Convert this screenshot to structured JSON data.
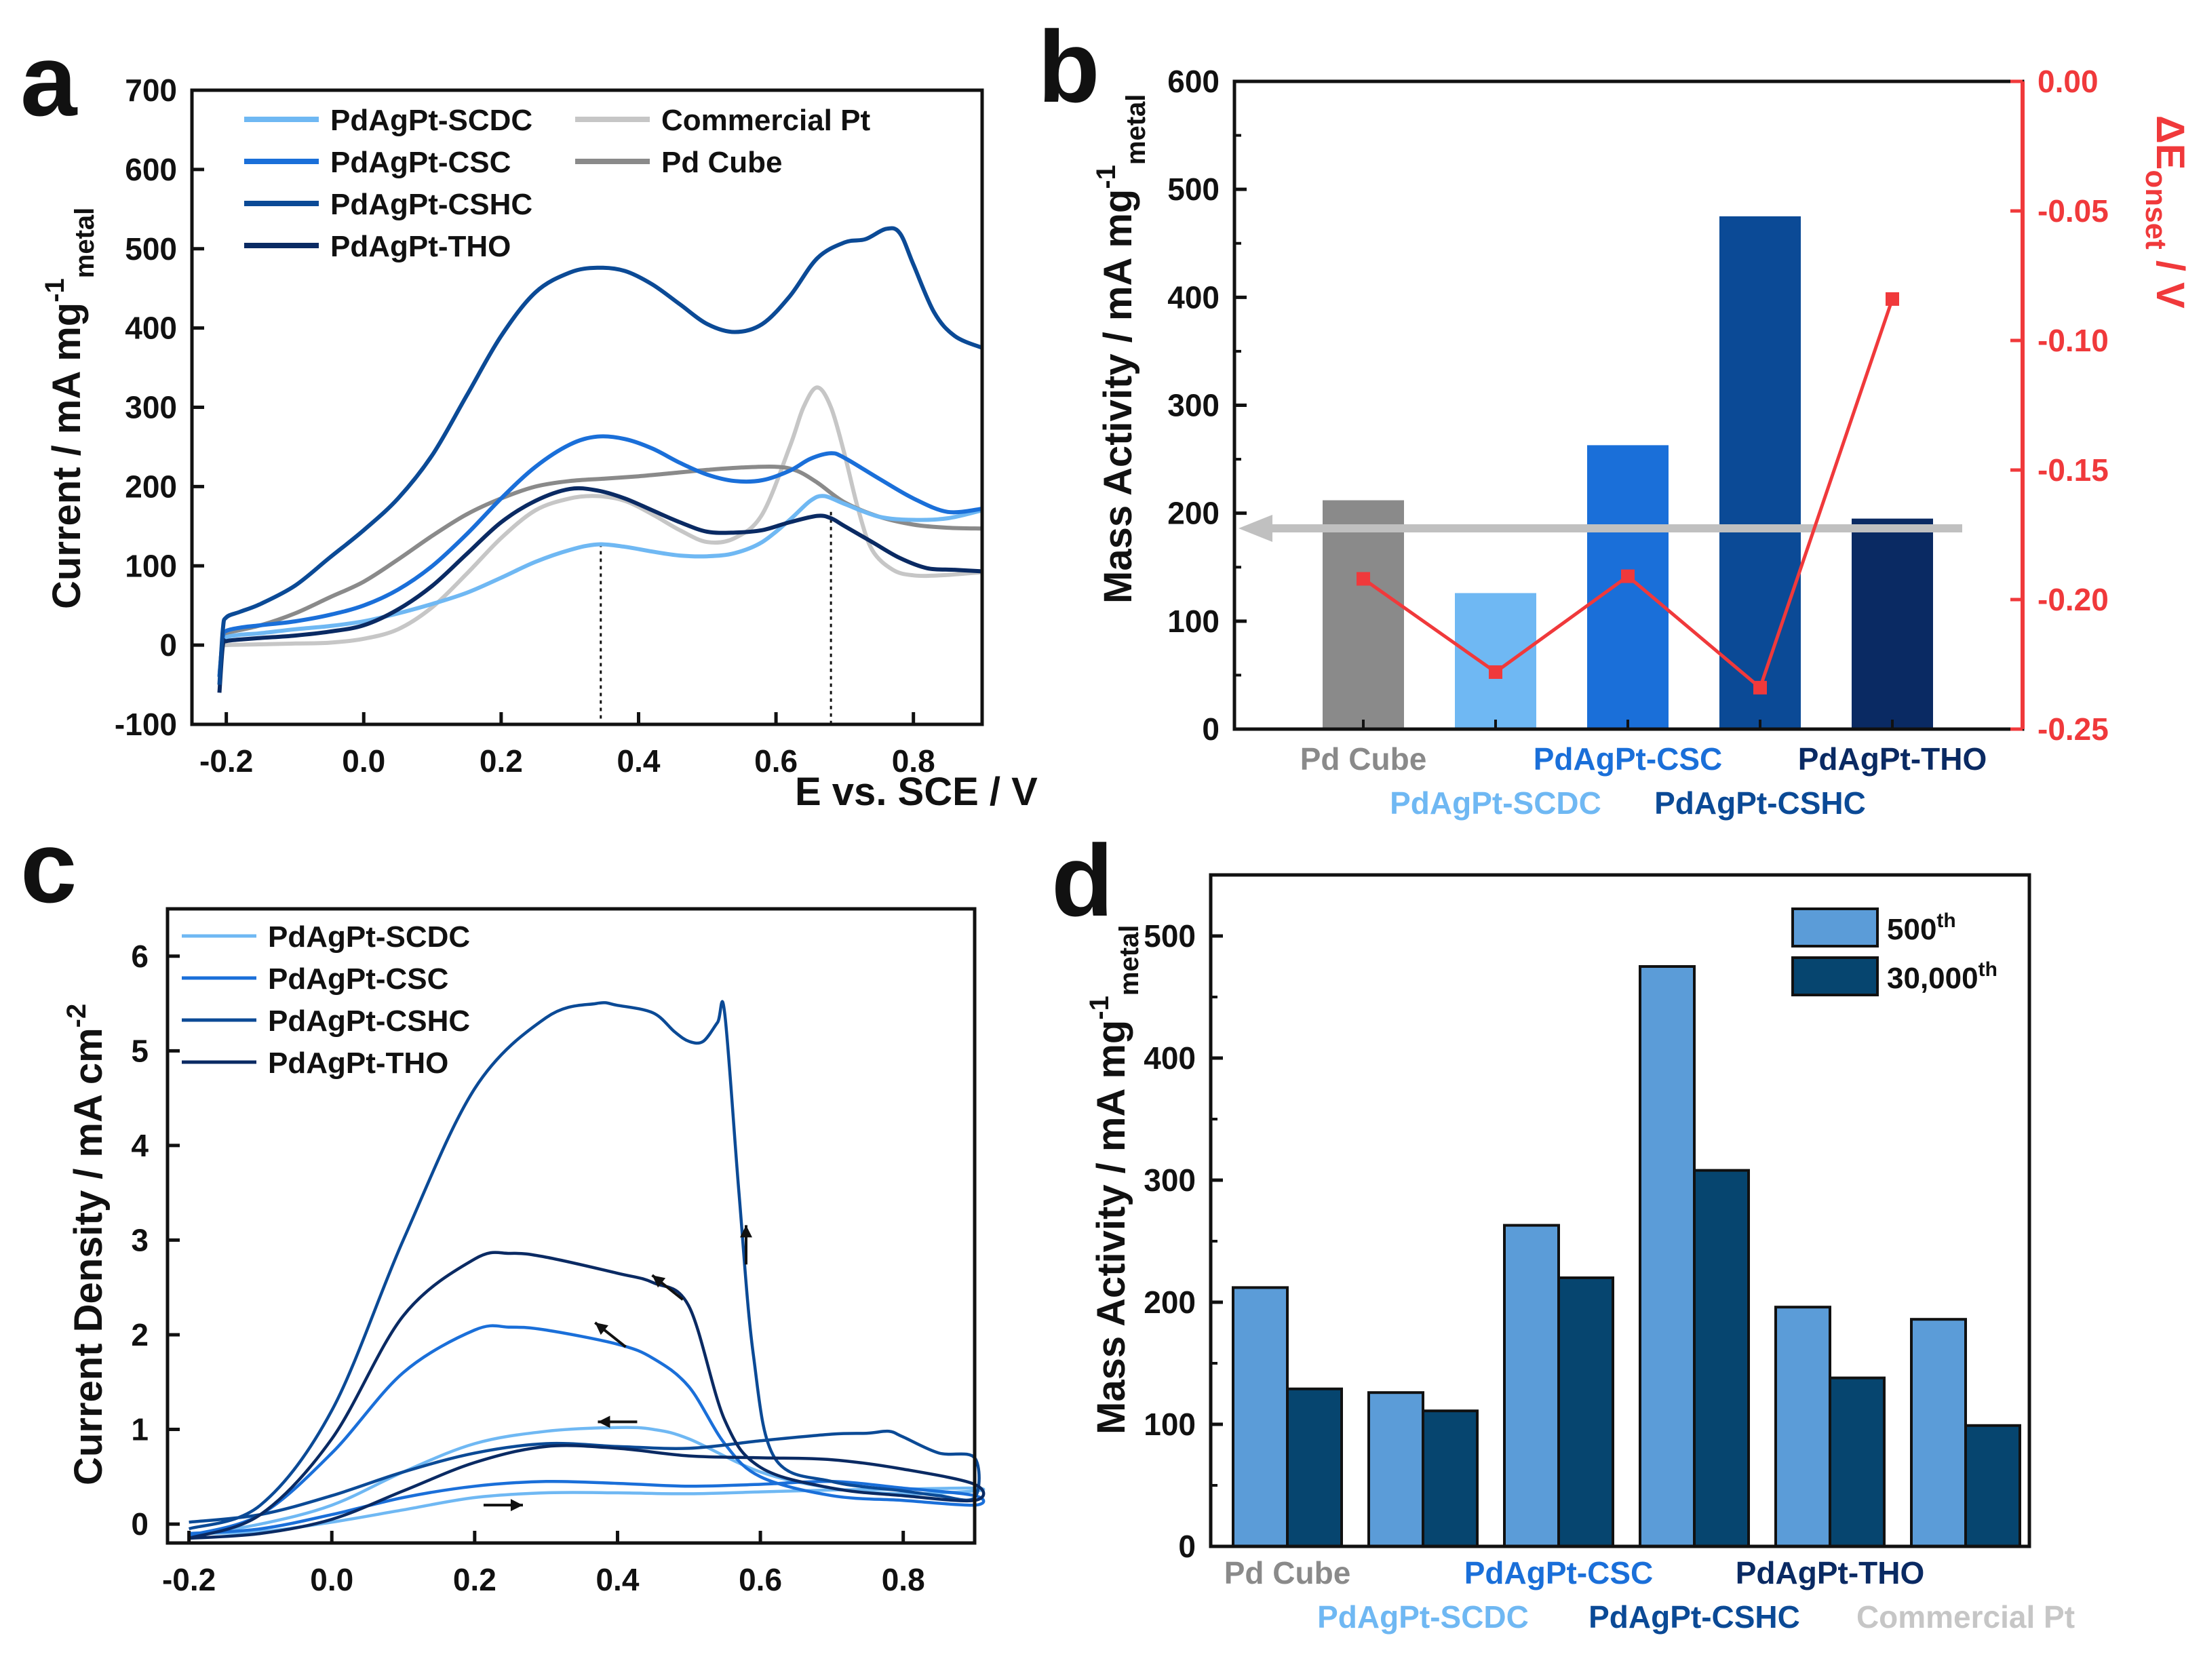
{
  "colors": {
    "scdc": "#6fb8f3",
    "csc": "#1a6fd9",
    "cshc": "#0b4a96",
    "tho": "#0a2a63",
    "commercial_pt": "#c6c6c6",
    "pd_cube": "#8a8a8a",
    "red": "#f0393b",
    "d_500": "#5b9cd8",
    "d_30000": "#06456f"
  },
  "chart_data": [
    {
      "panel": "a",
      "type": "line",
      "xlabel": "E vs. SCE / V",
      "ylabel": "Current / mA mg",
      "ylabel_sup": "-1",
      "ylabel_sub": "metal",
      "xlim": [
        -0.25,
        0.9
      ],
      "ylim": [
        -100,
        700
      ],
      "xticks": [
        "-0.2",
        "0.0",
        "0.2",
        "0.4",
        "0.6",
        "0.8"
      ],
      "xtick_values": [
        -0.2,
        0.0,
        0.2,
        0.4,
        0.6,
        0.8
      ],
      "yticks": [
        "-100",
        "0",
        "100",
        "200",
        "300",
        "400",
        "500",
        "600",
        "700"
      ],
      "ytick_values": [
        -100,
        0,
        100,
        200,
        300,
        400,
        500,
        600,
        700
      ],
      "dotted_markers": [
        {
          "x": 0.345,
          "y": 128
        },
        {
          "x": 0.68,
          "y": 168
        }
      ],
      "series": [
        {
          "name": "PdAgPt-SCDC",
          "color_key": "scdc",
          "x": [
            -0.21,
            -0.205,
            -0.2,
            -0.18,
            -0.15,
            -0.1,
            -0.05,
            0.0,
            0.05,
            0.1,
            0.15,
            0.2,
            0.25,
            0.3,
            0.34,
            0.38,
            0.42,
            0.46,
            0.5,
            0.54,
            0.58,
            0.62,
            0.65,
            0.67,
            0.7,
            0.75,
            0.8,
            0.85,
            0.9
          ],
          "y": [
            -40,
            5,
            10,
            13,
            15,
            20,
            24,
            30,
            40,
            52,
            66,
            85,
            105,
            120,
            127,
            124,
            118,
            113,
            112,
            116,
            130,
            158,
            182,
            188,
            178,
            162,
            158,
            160,
            170
          ]
        },
        {
          "name": "PdAgPt-CSC",
          "color_key": "csc",
          "x": [
            -0.21,
            -0.205,
            -0.2,
            -0.18,
            -0.15,
            -0.1,
            -0.05,
            0.0,
            0.05,
            0.1,
            0.15,
            0.2,
            0.25,
            0.3,
            0.34,
            0.38,
            0.42,
            0.46,
            0.5,
            0.54,
            0.58,
            0.62,
            0.65,
            0.68,
            0.7,
            0.75,
            0.8,
            0.85,
            0.9
          ],
          "y": [
            -40,
            10,
            18,
            22,
            25,
            30,
            38,
            50,
            70,
            100,
            140,
            185,
            225,
            253,
            263,
            260,
            248,
            230,
            215,
            207,
            208,
            220,
            235,
            242,
            236,
            210,
            185,
            168,
            172
          ]
        },
        {
          "name": "PdAgPt-CSHC",
          "color_key": "cshc",
          "x": [
            -0.21,
            -0.205,
            -0.2,
            -0.18,
            -0.15,
            -0.1,
            -0.05,
            0.0,
            0.05,
            0.1,
            0.15,
            0.2,
            0.25,
            0.3,
            0.34,
            0.38,
            0.42,
            0.46,
            0.5,
            0.54,
            0.58,
            0.62,
            0.66,
            0.7,
            0.73,
            0.76,
            0.78,
            0.8,
            0.83,
            0.86,
            0.9
          ],
          "y": [
            -50,
            20,
            35,
            42,
            52,
            75,
            110,
            145,
            185,
            240,
            315,
            390,
            445,
            470,
            476,
            472,
            455,
            430,
            405,
            395,
            405,
            440,
            488,
            508,
            512,
            525,
            520,
            480,
            420,
            390,
            375
          ]
        },
        {
          "name": "PdAgPt-THO",
          "color_key": "tho",
          "x": [
            -0.21,
            -0.205,
            -0.2,
            -0.18,
            -0.15,
            -0.1,
            -0.05,
            0.0,
            0.05,
            0.1,
            0.15,
            0.2,
            0.25,
            0.3,
            0.34,
            0.38,
            0.42,
            0.46,
            0.5,
            0.54,
            0.58,
            0.62,
            0.66,
            0.68,
            0.7,
            0.74,
            0.78,
            0.82,
            0.86,
            0.9
          ],
          "y": [
            -60,
            0,
            5,
            7,
            9,
            12,
            17,
            25,
            45,
            75,
            115,
            155,
            182,
            197,
            195,
            185,
            170,
            155,
            143,
            142,
            145,
            155,
            163,
            160,
            150,
            130,
            110,
            97,
            95,
            93
          ]
        },
        {
          "name": "Commercial Pt",
          "color_key": "commercial_pt",
          "x": [
            -0.21,
            -0.205,
            -0.2,
            -0.15,
            -0.1,
            -0.05,
            0.0,
            0.05,
            0.1,
            0.15,
            0.2,
            0.25,
            0.3,
            0.34,
            0.38,
            0.42,
            0.46,
            0.5,
            0.54,
            0.58,
            0.62,
            0.64,
            0.66,
            0.68,
            0.7,
            0.72,
            0.74,
            0.77,
            0.8,
            0.84,
            0.9
          ],
          "y": [
            -35,
            -2,
            0,
            1,
            2,
            3,
            8,
            20,
            48,
            90,
            135,
            170,
            185,
            188,
            182,
            165,
            145,
            130,
            135,
            165,
            250,
            300,
            325,
            300,
            240,
            170,
            120,
            95,
            88,
            88,
            92
          ]
        },
        {
          "name": "Pd Cube",
          "color_key": "pd_cube",
          "x": [
            -0.21,
            -0.205,
            -0.2,
            -0.15,
            -0.1,
            -0.05,
            0.0,
            0.05,
            0.1,
            0.15,
            0.2,
            0.25,
            0.3,
            0.35,
            0.4,
            0.45,
            0.5,
            0.55,
            0.6,
            0.63,
            0.66,
            0.7,
            0.75,
            0.8,
            0.85,
            0.9
          ],
          "y": [
            -40,
            10,
            15,
            25,
            40,
            60,
            80,
            108,
            138,
            165,
            185,
            200,
            207,
            210,
            213,
            217,
            221,
            224,
            225,
            220,
            205,
            180,
            162,
            152,
            148,
            147
          ]
        }
      ]
    },
    {
      "panel": "b",
      "type": "bar",
      "ylabel": "Mass Activity / mA mg",
      "ylabel_sup": "-1",
      "ylabel_sub": "metal",
      "y2label": "ΔE",
      "y2label_sub": "onset",
      "y2label_tail": " / V",
      "categories": [
        "Pd Cube",
        "PdAgPt-SCDC",
        "PdAgPt-CSC",
        "PdAgPt-CSHC",
        "PdAgPt-THO"
      ],
      "category_color_keys": [
        "pd_cube",
        "scdc",
        "csc",
        "cshc",
        "tho"
      ],
      "values": [
        212,
        126,
        263,
        475,
        195
      ],
      "ylim": [
        0,
        600
      ],
      "yticks": [
        "0",
        "100",
        "200",
        "300",
        "400",
        "500",
        "600"
      ],
      "ytick_values": [
        0,
        100,
        200,
        300,
        400,
        500,
        600
      ],
      "line_series": {
        "name": "ΔE onset",
        "values": [
          -0.192,
          -0.228,
          -0.191,
          -0.234,
          -0.084
        ],
        "axis": "right"
      },
      "y2lim": [
        -0.25,
        0.0
      ],
      "y2ticks": [
        "0.00",
        "-0.05",
        "-0.10",
        "-0.15",
        "-0.20",
        "-0.25"
      ],
      "y2tick_values": [
        0.0,
        -0.05,
        -0.1,
        -0.15,
        -0.2,
        -0.25
      ],
      "arrow": {
        "direction": "left",
        "y": 186
      }
    },
    {
      "panel": "c",
      "type": "line",
      "xlabel": "",
      "ylabel": "Current Density / mA cm",
      "ylabel_sup": "-2",
      "xlim": [
        -0.23,
        0.9
      ],
      "ylim": [
        -0.2,
        6.5
      ],
      "xticks": [
        "-0.2",
        "0.0",
        "0.2",
        "0.4",
        "0.6",
        "0.8"
      ],
      "xtick_values": [
        -0.2,
        0.0,
        0.2,
        0.4,
        0.6,
        0.8
      ],
      "yticks": [
        "0",
        "1",
        "2",
        "3",
        "4",
        "5",
        "6"
      ],
      "ytick_values": [
        0,
        1,
        2,
        3,
        4,
        5,
        6
      ],
      "series": [
        {
          "name": "PdAgPt-SCDC",
          "color_key": "scdc",
          "x": [
            -0.2,
            -0.1,
            0.0,
            0.1,
            0.2,
            0.3,
            0.4,
            0.5,
            0.6,
            0.7,
            0.8,
            0.9,
            0.9,
            0.8,
            0.7,
            0.6,
            0.5,
            0.45,
            0.4,
            0.3,
            0.2,
            0.1,
            0.0,
            -0.1,
            -0.2
          ],
          "y": [
            -0.1,
            -0.08,
            0.02,
            0.15,
            0.28,
            0.33,
            0.33,
            0.32,
            0.34,
            0.36,
            0.37,
            0.38,
            0.35,
            0.32,
            0.38,
            0.55,
            0.9,
            1.0,
            1.02,
            0.98,
            0.85,
            0.55,
            0.2,
            0.0,
            -0.12
          ]
        },
        {
          "name": "PdAgPt-CSC",
          "color_key": "csc",
          "x": [
            -0.2,
            -0.1,
            0.0,
            0.1,
            0.2,
            0.3,
            0.4,
            0.5,
            0.6,
            0.7,
            0.8,
            0.9,
            0.9,
            0.8,
            0.7,
            0.6,
            0.55,
            0.5,
            0.45,
            0.4,
            0.3,
            0.25,
            0.2,
            0.1,
            0.0,
            -0.1,
            -0.2
          ],
          "y": [
            -0.1,
            -0.05,
            0.1,
            0.28,
            0.4,
            0.45,
            0.43,
            0.4,
            0.42,
            0.45,
            0.38,
            0.3,
            0.2,
            0.25,
            0.3,
            0.5,
            0.85,
            1.45,
            1.75,
            1.9,
            2.05,
            2.08,
            2.05,
            1.6,
            0.75,
            0.1,
            -0.12
          ]
        },
        {
          "name": "PdAgPt-CSHC",
          "color_key": "cshc",
          "x": [
            -0.2,
            -0.1,
            0.0,
            0.1,
            0.2,
            0.3,
            0.4,
            0.5,
            0.6,
            0.7,
            0.75,
            0.78,
            0.8,
            0.85,
            0.9,
            0.9,
            0.85,
            0.8,
            0.7,
            0.62,
            0.59,
            0.57,
            0.55,
            0.54,
            0.52,
            0.5,
            0.48,
            0.45,
            0.4,
            0.37,
            0.3,
            0.2,
            0.1,
            0.0,
            -0.1,
            -0.2
          ],
          "y": [
            0.02,
            0.1,
            0.3,
            0.55,
            0.75,
            0.85,
            0.82,
            0.8,
            0.88,
            0.95,
            0.96,
            0.98,
            0.92,
            0.75,
            0.7,
            0.28,
            0.3,
            0.35,
            0.45,
            0.7,
            1.8,
            3.5,
            5.4,
            5.3,
            5.1,
            5.1,
            5.2,
            5.4,
            5.48,
            5.5,
            5.35,
            4.6,
            3.0,
            1.2,
            0.2,
            -0.05
          ]
        },
        {
          "name": "PdAgPt-THO",
          "color_key": "tho",
          "x": [
            -0.2,
            -0.1,
            0.0,
            0.1,
            0.2,
            0.3,
            0.4,
            0.5,
            0.6,
            0.7,
            0.8,
            0.9,
            0.9,
            0.8,
            0.7,
            0.6,
            0.55,
            0.5,
            0.45,
            0.4,
            0.3,
            0.25,
            0.2,
            0.1,
            0.0,
            -0.1,
            -0.2
          ],
          "y": [
            -0.15,
            -0.1,
            0.05,
            0.35,
            0.65,
            0.82,
            0.8,
            0.72,
            0.7,
            0.68,
            0.58,
            0.42,
            0.25,
            0.3,
            0.38,
            0.6,
            1.1,
            2.3,
            2.55,
            2.65,
            2.82,
            2.86,
            2.8,
            2.2,
            0.9,
            0.1,
            -0.15
          ]
        }
      ],
      "arrows": [
        {
          "x": 0.58,
          "y": 2.95,
          "direction": "up"
        },
        {
          "x": 0.47,
          "y": 2.5,
          "direction": "up-left"
        },
        {
          "x": 0.39,
          "y": 2.0,
          "direction": "up-left"
        },
        {
          "x": 0.4,
          "y": 1.08,
          "direction": "left"
        },
        {
          "x": 0.24,
          "y": 0.2,
          "direction": "right"
        }
      ]
    },
    {
      "panel": "d",
      "type": "bar",
      "ylabel": "Mass Activity / mA mg",
      "ylabel_sup": "-1",
      "ylabel_sub": "metal",
      "categories": [
        "Pd Cube",
        "PdAgPt-SCDC",
        "PdAgPt-CSC",
        "PdAgPt-CSHC",
        "PdAgPt-THO",
        "Commercial Pt"
      ],
      "category_color_keys": [
        "pd_cube",
        "scdc",
        "csc",
        "cshc",
        "tho",
        "commercial_pt"
      ],
      "ylim": [
        0,
        550
      ],
      "yticks": [
        "0",
        "100",
        "200",
        "300",
        "400",
        "500"
      ],
      "ytick_values": [
        0,
        100,
        200,
        300,
        400,
        500
      ],
      "series": [
        {
          "name": "500",
          "name_sup": "th",
          "color_key": "d_500",
          "values": [
            212,
            126,
            263,
            475,
            196,
            186
          ]
        },
        {
          "name": "30,000",
          "name_sup": "th",
          "color_key": "d_30000",
          "values": [
            129,
            111,
            220,
            308,
            138,
            99
          ]
        }
      ]
    }
  ],
  "panel_letters": [
    "a",
    "b",
    "c",
    "d"
  ]
}
